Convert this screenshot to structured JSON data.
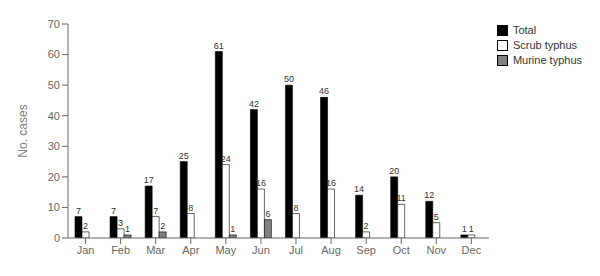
{
  "chart_data": {
    "type": "bar",
    "categories": [
      "Jan",
      "Feb",
      "Mar",
      "Apr",
      "May",
      "Jun",
      "Jul",
      "Aug",
      "Sep",
      "Oct",
      "Nov",
      "Dec"
    ],
    "series": [
      {
        "name": "Total",
        "color": "#000000",
        "values": [
          7,
          7,
          17,
          25,
          61,
          42,
          50,
          46,
          14,
          20,
          12,
          1
        ]
      },
      {
        "name": "Scrub typhus",
        "color": "#ffffff",
        "values": [
          2,
          3,
          7,
          8,
          24,
          16,
          8,
          16,
          2,
          11,
          5,
          1
        ]
      },
      {
        "name": "Murine typhus",
        "color": "#808080",
        "values": [
          0,
          1,
          2,
          0,
          1,
          6,
          0,
          0,
          0,
          0,
          0,
          0
        ]
      }
    ],
    "ylabel": "No. cases",
    "ylim": [
      0,
      70
    ],
    "yticks": [
      0,
      10,
      20,
      30,
      40,
      50,
      60,
      70
    ],
    "grid": false,
    "legend": "upper right",
    "data_labels": true
  }
}
